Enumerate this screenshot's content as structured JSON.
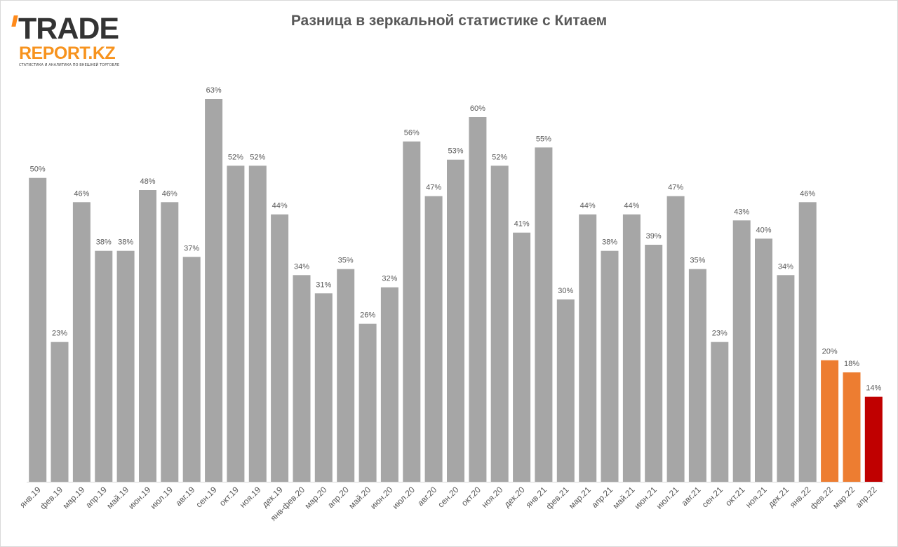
{
  "logo": {
    "brand_top": "TRADE",
    "brand_bottom": "REPORT.KZ",
    "tagline": "СТАТИСТИКА И АНАЛИТИКА ПО ВНЕШНЕЙ ТОРГОВЛЕ",
    "colors": {
      "dark": "#333333",
      "accent": "#f7931e"
    }
  },
  "chart_data": {
    "type": "bar",
    "title": "Разница в зеркальной статистике с Китаем",
    "xlabel": "",
    "ylabel": "",
    "ylim": [
      0,
      63
    ],
    "grid": false,
    "legend": "none",
    "value_suffix": "%",
    "categories": [
      "янв.19",
      "фев.19",
      "мар.19",
      "апр.19",
      "май.19",
      "июн.19",
      "июл.19",
      "авг.19",
      "сен.19",
      "окт.19",
      "ноя.19",
      "дек.19",
      "янв-фев.20",
      "мар.20",
      "апр.20",
      "май.20",
      "июн.20",
      "июл.20",
      "авг.20",
      "сен.20",
      "окт.20",
      "ноя.20",
      "дек.20",
      "янв.21",
      "фев.21",
      "мар.21",
      "апр.21",
      "май.21",
      "июн.21",
      "июл.21",
      "авг.21",
      "сен.21",
      "окт.21",
      "ноя.21",
      "дек.21",
      "янв.22",
      "фев.22",
      "мар.22",
      "апр.22"
    ],
    "values": [
      50,
      23,
      46,
      38,
      38,
      48,
      46,
      37,
      63,
      52,
      52,
      44,
      34,
      31,
      35,
      26,
      32,
      56,
      47,
      53,
      60,
      52,
      41,
      55,
      30,
      44,
      38,
      44,
      39,
      47,
      35,
      23,
      43,
      40,
      34,
      46,
      20,
      18,
      14
    ],
    "bar_colors": [
      "#a6a6a6",
      "#a6a6a6",
      "#a6a6a6",
      "#a6a6a6",
      "#a6a6a6",
      "#a6a6a6",
      "#a6a6a6",
      "#a6a6a6",
      "#a6a6a6",
      "#a6a6a6",
      "#a6a6a6",
      "#a6a6a6",
      "#a6a6a6",
      "#a6a6a6",
      "#a6a6a6",
      "#a6a6a6",
      "#a6a6a6",
      "#a6a6a6",
      "#a6a6a6",
      "#a6a6a6",
      "#a6a6a6",
      "#a6a6a6",
      "#a6a6a6",
      "#a6a6a6",
      "#a6a6a6",
      "#a6a6a6",
      "#a6a6a6",
      "#a6a6a6",
      "#a6a6a6",
      "#a6a6a6",
      "#a6a6a6",
      "#a6a6a6",
      "#a6a6a6",
      "#a6a6a6",
      "#a6a6a6",
      "#a6a6a6",
      "#ed7d31",
      "#ed7d31",
      "#c00000"
    ],
    "colors": {
      "axis": "#d9d9d9",
      "label": "#595959"
    }
  }
}
